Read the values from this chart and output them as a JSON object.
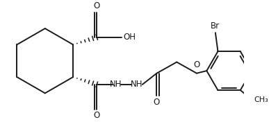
{
  "bg_color": "#ffffff",
  "line_color": "#1a1a1a",
  "line_width": 1.4,
  "text_color": "#1a1a1a",
  "font_size": 8.5,
  "figsize": [
    3.87,
    1.76
  ],
  "dpi": 100,
  "xlim": [
    0,
    387
  ],
  "ylim": [
    0,
    176
  ]
}
